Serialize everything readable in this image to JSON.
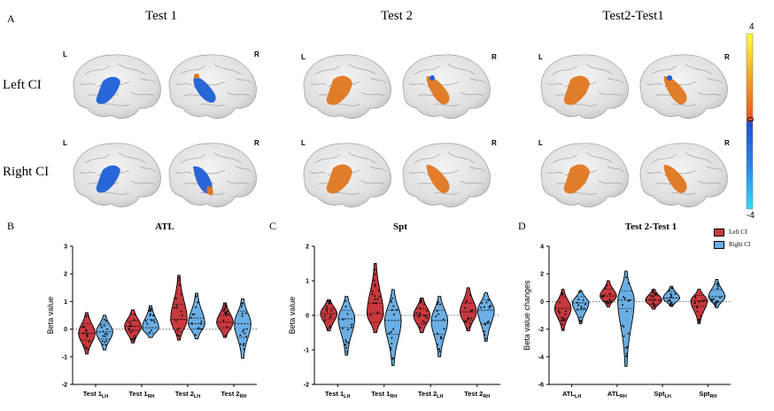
{
  "figure": {
    "panel_labels": [
      "A",
      "B",
      "C",
      "D"
    ],
    "column_titles": [
      "Test 1",
      "Test 2",
      "Test2-Test1"
    ],
    "row_titles": [
      "Left CI",
      "Right CI"
    ],
    "hemisphere_labels": {
      "left": "L",
      "right": "R"
    },
    "colorbar": {
      "max": "4",
      "mid": "0",
      "min": "-4"
    },
    "legend": [
      "Left CI",
      "Right CI"
    ]
  },
  "colors": {
    "left_ci": "#c8383e",
    "right_ci": "#6aaee3",
    "brain": "#e4e4e4",
    "activation_blue": "#1f5fd6",
    "activation_orange": "#e0761e"
  },
  "chart_data": [
    {
      "type": "violin",
      "title": "ATL",
      "xlabel": "",
      "ylabel": "Beta value",
      "ylim": [
        -2,
        3
      ],
      "yticks": [
        "-2",
        "-1",
        "0",
        "1",
        "2",
        "3"
      ],
      "categories": [
        {
          "main": "Test 1",
          "sub": "LH"
        },
        {
          "main": "Test 1",
          "sub": "RH"
        },
        {
          "main": "Test 2",
          "sub": "LH"
        },
        {
          "main": "Test 2",
          "sub": "RH"
        }
      ],
      "series": [
        {
          "name": "Left CI",
          "groups": [
            {
              "min": -0.9,
              "q1": -0.4,
              "median": -0.15,
              "q3": 0.2,
              "max": 0.6
            },
            {
              "min": -0.5,
              "q1": -0.05,
              "median": 0.1,
              "q3": 0.3,
              "max": 0.7
            },
            {
              "min": -0.4,
              "q1": -0.1,
              "median": 0.35,
              "q3": 0.9,
              "max": 1.95
            },
            {
              "min": -0.3,
              "q1": 0.05,
              "median": 0.25,
              "q3": 0.5,
              "max": 0.95
            }
          ]
        },
        {
          "name": "Right CI",
          "groups": [
            {
              "min": -0.75,
              "q1": -0.35,
              "median": -0.1,
              "q3": 0.2,
              "max": 0.5
            },
            {
              "min": -0.3,
              "q1": -0.15,
              "median": 0.05,
              "q3": 0.35,
              "max": 0.85
            },
            {
              "min": -0.35,
              "q1": 0.0,
              "median": 0.2,
              "q3": 0.4,
              "max": 1.3
            },
            {
              "min": -1.05,
              "q1": -0.3,
              "median": 0.2,
              "q3": 0.65,
              "max": 1.1
            }
          ]
        }
      ]
    },
    {
      "type": "violin",
      "title": "Spt",
      "xlabel": "",
      "ylabel": "Beta value",
      "ylim": [
        -2,
        2
      ],
      "yticks": [
        "-2",
        "-1",
        "0",
        "1",
        "2"
      ],
      "categories": [
        {
          "main": "Test 1",
          "sub": "LH"
        },
        {
          "main": "Test 1",
          "sub": "RH"
        },
        {
          "main": "Test 2",
          "sub": "LH"
        },
        {
          "main": "Test 2",
          "sub": "RH"
        }
      ],
      "series": [
        {
          "name": "Left CI",
          "groups": [
            {
              "min": -0.45,
              "q1": -0.1,
              "median": 0.05,
              "q3": 0.2,
              "max": 0.45
            },
            {
              "min": -0.5,
              "q1": -0.2,
              "median": 0.05,
              "q3": 0.35,
              "max": 1.5
            },
            {
              "min": -0.5,
              "q1": -0.25,
              "median": 0.0,
              "q3": 0.2,
              "max": 0.5
            },
            {
              "min": -0.45,
              "q1": -0.15,
              "median": 0.1,
              "q3": 0.35,
              "max": 0.8
            }
          ]
        },
        {
          "name": "Right CI",
          "groups": [
            {
              "min": -1.15,
              "q1": -0.35,
              "median": -0.1,
              "q3": 0.15,
              "max": 0.55
            },
            {
              "min": -1.45,
              "q1": -0.55,
              "median": -0.15,
              "q3": 0.15,
              "max": 0.75
            },
            {
              "min": -1.2,
              "q1": -0.55,
              "median": -0.15,
              "q3": 0.15,
              "max": 0.55
            },
            {
              "min": -0.75,
              "q1": -0.25,
              "median": 0.15,
              "q3": 0.45,
              "max": 0.65
            }
          ]
        }
      ]
    },
    {
      "type": "violin",
      "title": "Test 2-Test 1",
      "xlabel": "",
      "ylabel": "Beta value changes",
      "ylim": [
        -6,
        4
      ],
      "yticks": [
        "-6",
        "-4",
        "-2",
        "0",
        "2",
        "4"
      ],
      "categories": [
        {
          "main": "ATL",
          "sub": "LH"
        },
        {
          "main": "ATL",
          "sub": "RH"
        },
        {
          "main": "Spt",
          "sub": "LH"
        },
        {
          "main": "Spt",
          "sub": "RH"
        }
      ],
      "series": [
        {
          "name": "Left CI",
          "groups": [
            {
              "min": -2.1,
              "q1": -1.2,
              "median": -0.5,
              "q3": 0.3,
              "max": 0.9
            },
            {
              "min": -0.4,
              "q1": 0.05,
              "median": 0.4,
              "q3": 0.9,
              "max": 1.5
            },
            {
              "min": -0.55,
              "q1": -0.2,
              "median": 0.1,
              "q3": 0.45,
              "max": 0.9
            },
            {
              "min": -1.6,
              "q1": -0.35,
              "median": 0.05,
              "q3": 0.45,
              "max": 0.9
            }
          ]
        },
        {
          "name": "Right CI",
          "groups": [
            {
              "min": -1.6,
              "q1": -0.6,
              "median": -0.1,
              "q3": 0.35,
              "max": 0.8
            },
            {
              "min": -4.7,
              "q1": -0.5,
              "median": 0.1,
              "q3": 0.75,
              "max": 2.2
            },
            {
              "min": -0.35,
              "q1": -0.1,
              "median": 0.25,
              "q3": 0.7,
              "max": 1.1
            },
            {
              "min": -0.45,
              "q1": -0.05,
              "median": 0.35,
              "q3": 0.85,
              "max": 1.6
            }
          ]
        }
      ]
    }
  ]
}
